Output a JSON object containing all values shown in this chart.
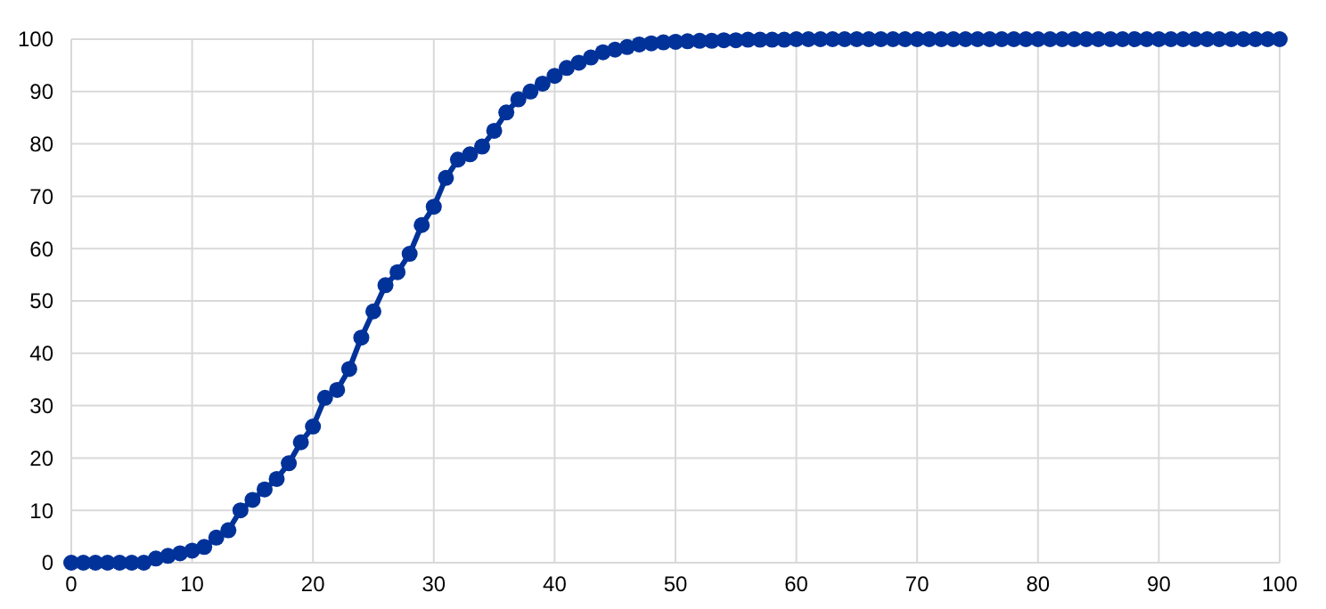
{
  "chart_data": {
    "type": "line",
    "x": [
      0,
      1,
      2,
      3,
      4,
      5,
      6,
      7,
      8,
      9,
      10,
      11,
      12,
      13,
      14,
      15,
      16,
      17,
      18,
      19,
      20,
      21,
      22,
      23,
      24,
      25,
      26,
      27,
      28,
      29,
      30,
      31,
      32,
      33,
      34,
      35,
      36,
      37,
      38,
      39,
      40,
      41,
      42,
      43,
      44,
      45,
      46,
      47,
      48,
      49,
      50,
      51,
      52,
      53,
      54,
      55,
      56,
      57,
      58,
      59,
      60,
      61,
      62,
      63,
      64,
      65,
      66,
      67,
      68,
      69,
      70,
      71,
      72,
      73,
      74,
      75,
      76,
      77,
      78,
      79,
      80,
      81,
      82,
      83,
      84,
      85,
      86,
      87,
      88,
      89,
      90,
      91,
      92,
      93,
      94,
      95,
      96,
      97,
      98,
      99,
      100
    ],
    "series": [
      {
        "color": "#003299",
        "values": [
          0,
          0,
          0,
          0,
          0,
          0,
          0,
          0.8,
          1.3,
          1.8,
          2.3,
          3,
          4.8,
          6.2,
          10,
          12,
          14,
          16,
          19,
          23,
          26,
          31.5,
          33,
          37,
          43,
          48,
          53,
          55.5,
          59,
          64.5,
          68,
          73.5,
          77,
          78,
          79.5,
          82.5,
          86,
          88.5,
          90,
          91.5,
          93,
          94.5,
          95.5,
          96.5,
          97.5,
          98,
          98.5,
          99,
          99.2,
          99.4,
          99.5,
          99.6,
          99.7,
          99.7,
          99.8,
          99.8,
          99.9,
          99.9,
          99.9,
          99.9,
          100,
          100,
          100,
          100,
          100,
          100,
          100,
          100,
          100,
          100,
          100,
          100,
          100,
          100,
          100,
          100,
          100,
          100,
          100,
          100,
          100,
          100,
          100,
          100,
          100,
          100,
          100,
          100,
          100,
          100,
          100,
          100,
          100,
          100,
          100,
          100,
          100,
          100,
          100,
          100,
          100
        ]
      }
    ],
    "xlim": [
      0,
      100
    ],
    "xticks": [
      0,
      10,
      20,
      30,
      40,
      50,
      60,
      70,
      80,
      90,
      100
    ],
    "ylim": [
      0,
      100
    ],
    "yticks": [
      0,
      10,
      20,
      30,
      40,
      50,
      60,
      70,
      80,
      90,
      100
    ],
    "grid": true,
    "marker": "circle",
    "line_style": "solid"
  }
}
